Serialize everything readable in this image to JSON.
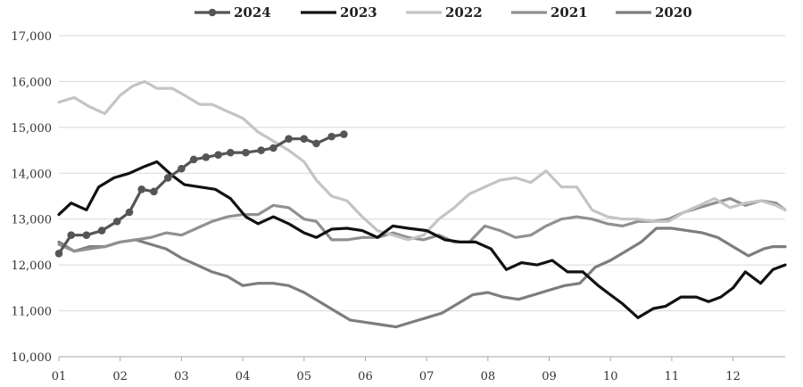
{
  "chart_data": {
    "type": "line",
    "title": "",
    "xlabel": "",
    "ylabel": "",
    "x_tick_labels": [
      "01",
      "02",
      "03",
      "04",
      "05",
      "06",
      "07",
      "08",
      "09",
      "10",
      "11",
      "12"
    ],
    "y_tick_labels": [
      "10,000",
      "11,000",
      "12,000",
      "13,000",
      "14,000",
      "15,000",
      "16,000",
      "17,000"
    ],
    "ylim": [
      10000,
      17000
    ],
    "xlim": [
      1,
      12.85
    ],
    "grid": true,
    "legend_position": "top",
    "series": [
      {
        "name": "2024",
        "color": "#555555",
        "marker": "circle",
        "x": [
          1.0,
          1.2,
          1.45,
          1.7,
          1.95,
          2.15,
          2.35,
          2.55,
          2.78,
          3.0,
          3.2,
          3.4,
          3.6,
          3.8,
          4.05,
          4.3,
          4.5,
          4.75,
          5.0,
          5.2,
          5.45,
          5.65
        ],
        "y": [
          12250,
          12650,
          12650,
          12750,
          12950,
          13150,
          13650,
          13600,
          13900,
          14100,
          14300,
          14350,
          14400,
          14450,
          14450,
          14500,
          14550,
          14750,
          14750,
          14650,
          14800,
          14850
        ]
      },
      {
        "name": "2023",
        "color": "#111111",
        "marker": "none",
        "x": [
          1.0,
          1.2,
          1.45,
          1.65,
          1.9,
          2.15,
          2.4,
          2.6,
          2.85,
          3.05,
          3.3,
          3.55,
          3.8,
          4.05,
          4.25,
          4.5,
          4.75,
          5.0,
          5.2,
          5.45,
          5.7,
          5.95,
          6.2,
          6.45,
          6.7,
          7.0,
          7.3,
          7.55,
          7.8,
          8.05,
          8.3,
          8.55,
          8.8,
          9.05,
          9.3,
          9.55,
          9.8,
          10.0,
          10.2,
          10.45,
          10.7,
          10.9,
          11.15,
          11.4,
          11.6,
          11.8,
          12.0,
          12.2,
          12.45,
          12.65,
          12.85
        ],
        "y": [
          13100,
          13350,
          13200,
          13700,
          13900,
          14000,
          14150,
          14250,
          13950,
          13750,
          13700,
          13650,
          13450,
          13050,
          12900,
          13050,
          12900,
          12700,
          12600,
          12780,
          12800,
          12750,
          12600,
          12850,
          12800,
          12750,
          12550,
          12500,
          12500,
          12350,
          11900,
          12050,
          12000,
          12100,
          11850,
          11850,
          11550,
          11350,
          11150,
          10850,
          11050,
          11100,
          11300,
          11300,
          11200,
          11300,
          11500,
          11850,
          11600,
          11900,
          12000
        ]
      },
      {
        "name": "2022",
        "color": "#c4c4c4",
        "marker": "none",
        "x": [
          1.0,
          1.25,
          1.5,
          1.75,
          2.0,
          2.2,
          2.4,
          2.6,
          2.85,
          3.05,
          3.3,
          3.5,
          3.75,
          4.0,
          4.25,
          4.5,
          4.75,
          5.0,
          5.2,
          5.45,
          5.7,
          5.95,
          6.2,
          6.45,
          6.7,
          6.95,
          7.2,
          7.45,
          7.7,
          7.95,
          8.2,
          8.45,
          8.7,
          8.95,
          9.2,
          9.45,
          9.7,
          9.95,
          10.2,
          10.45,
          10.7,
          10.95,
          11.2,
          11.45,
          11.7,
          11.95,
          12.2,
          12.45,
          12.7,
          12.85
        ],
        "y": [
          15550,
          15650,
          15450,
          15300,
          15700,
          15900,
          16000,
          15850,
          15850,
          15700,
          15500,
          15500,
          15350,
          15200,
          14900,
          14700,
          14500,
          14250,
          13850,
          13500,
          13400,
          13050,
          12750,
          12650,
          12550,
          12650,
          13000,
          13250,
          13550,
          13700,
          13850,
          13900,
          13800,
          14050,
          13700,
          13700,
          13200,
          13050,
          13000,
          13000,
          12950,
          12950,
          13150,
          13300,
          13450,
          13250,
          13350,
          13400,
          13300,
          13200
        ]
      },
      {
        "name": "2021",
        "color": "#909090",
        "marker": "none",
        "x": [
          1.0,
          1.25,
          1.5,
          1.75,
          2.0,
          2.25,
          2.5,
          2.75,
          3.0,
          3.25,
          3.5,
          3.75,
          4.0,
          4.25,
          4.5,
          4.75,
          5.0,
          5.2,
          5.45,
          5.7,
          5.95,
          6.2,
          6.45,
          6.7,
          6.95,
          7.2,
          7.45,
          7.7,
          7.95,
          8.2,
          8.45,
          8.7,
          8.95,
          9.2,
          9.45,
          9.7,
          9.95,
          10.2,
          10.45,
          10.7,
          10.95,
          11.2,
          11.45,
          11.7,
          11.95,
          12.2,
          12.45,
          12.7,
          12.85
        ],
        "y": [
          12450,
          12300,
          12350,
          12400,
          12500,
          12550,
          12600,
          12700,
          12650,
          12800,
          12950,
          13050,
          13100,
          13100,
          13300,
          13250,
          13000,
          12950,
          12550,
          12550,
          12600,
          12600,
          12700,
          12600,
          12550,
          12650,
          12500,
          12500,
          12850,
          12750,
          12600,
          12650,
          12850,
          13000,
          13050,
          13000,
          12900,
          12850,
          12950,
          12950,
          13000,
          13150,
          13250,
          13350,
          13450,
          13300,
          13400,
          13350,
          13200
        ]
      },
      {
        "name": "2020",
        "color": "#7d7d7d",
        "marker": "none",
        "x": [
          1.0,
          1.25,
          1.5,
          1.75,
          2.0,
          2.25,
          2.5,
          2.75,
          3.0,
          3.25,
          3.5,
          3.75,
          4.0,
          4.25,
          4.5,
          4.75,
          5.0,
          5.25,
          5.5,
          5.75,
          6.0,
          6.25,
          6.5,
          6.75,
          7.0,
          7.25,
          7.5,
          7.75,
          8.0,
          8.25,
          8.5,
          8.75,
          9.0,
          9.25,
          9.5,
          9.75,
          10.0,
          10.25,
          10.5,
          10.75,
          11.0,
          11.25,
          11.5,
          11.75,
          12.0,
          12.25,
          12.5,
          12.65,
          12.85
        ],
        "y": [
          12500,
          12300,
          12400,
          12400,
          12500,
          12550,
          12450,
          12350,
          12150,
          12000,
          11850,
          11750,
          11550,
          11600,
          11600,
          11550,
          11400,
          11200,
          11000,
          10800,
          10750,
          10700,
          10650,
          10750,
          10850,
          10950,
          11150,
          11350,
          11400,
          11300,
          11250,
          11350,
          11450,
          11550,
          11600,
          11950,
          12100,
          12300,
          12500,
          12800,
          12800,
          12750,
          12700,
          12600,
          12400,
          12200,
          12350,
          12400,
          12400
        ]
      }
    ]
  }
}
